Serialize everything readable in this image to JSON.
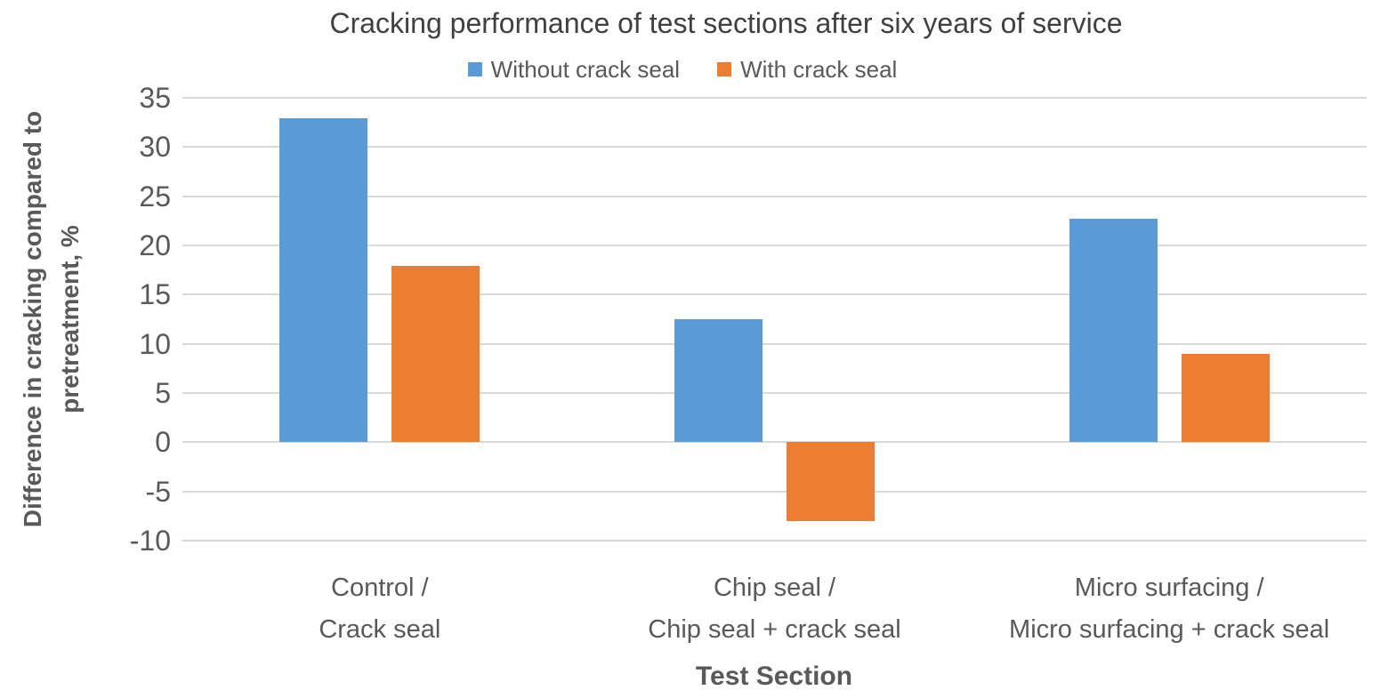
{
  "chart_data": {
    "type": "bar",
    "title": "Cracking performance of test sections after six years of service",
    "xlabel": "Test Section",
    "ylabel": "Difference in cracking compared to pretreatment, %",
    "ylabel_lines": [
      "Difference in cracking compared to",
      "pretreatment, %"
    ],
    "categories": [
      [
        "Control /",
        "Crack seal"
      ],
      [
        "Chip seal /",
        "Chip seal + crack seal"
      ],
      [
        "Micro surfacing /",
        "Micro surfacing + crack seal"
      ]
    ],
    "series": [
      {
        "name": "Without crack seal",
        "color": "#5B9BD5",
        "values": [
          32.9,
          12.5,
          22.7
        ]
      },
      {
        "name": "With crack seal",
        "color": "#ED7D31",
        "values": [
          17.9,
          -8,
          9
        ]
      }
    ],
    "y_ticks": [
      35,
      30,
      25,
      20,
      15,
      10,
      5,
      0,
      -5,
      -10
    ],
    "ylim": [
      -10,
      35
    ],
    "grid": true,
    "legend_position": "top",
    "gridline_color": "#D9D9D9",
    "title_color": "#404040",
    "axis_text_color": "#595959"
  }
}
